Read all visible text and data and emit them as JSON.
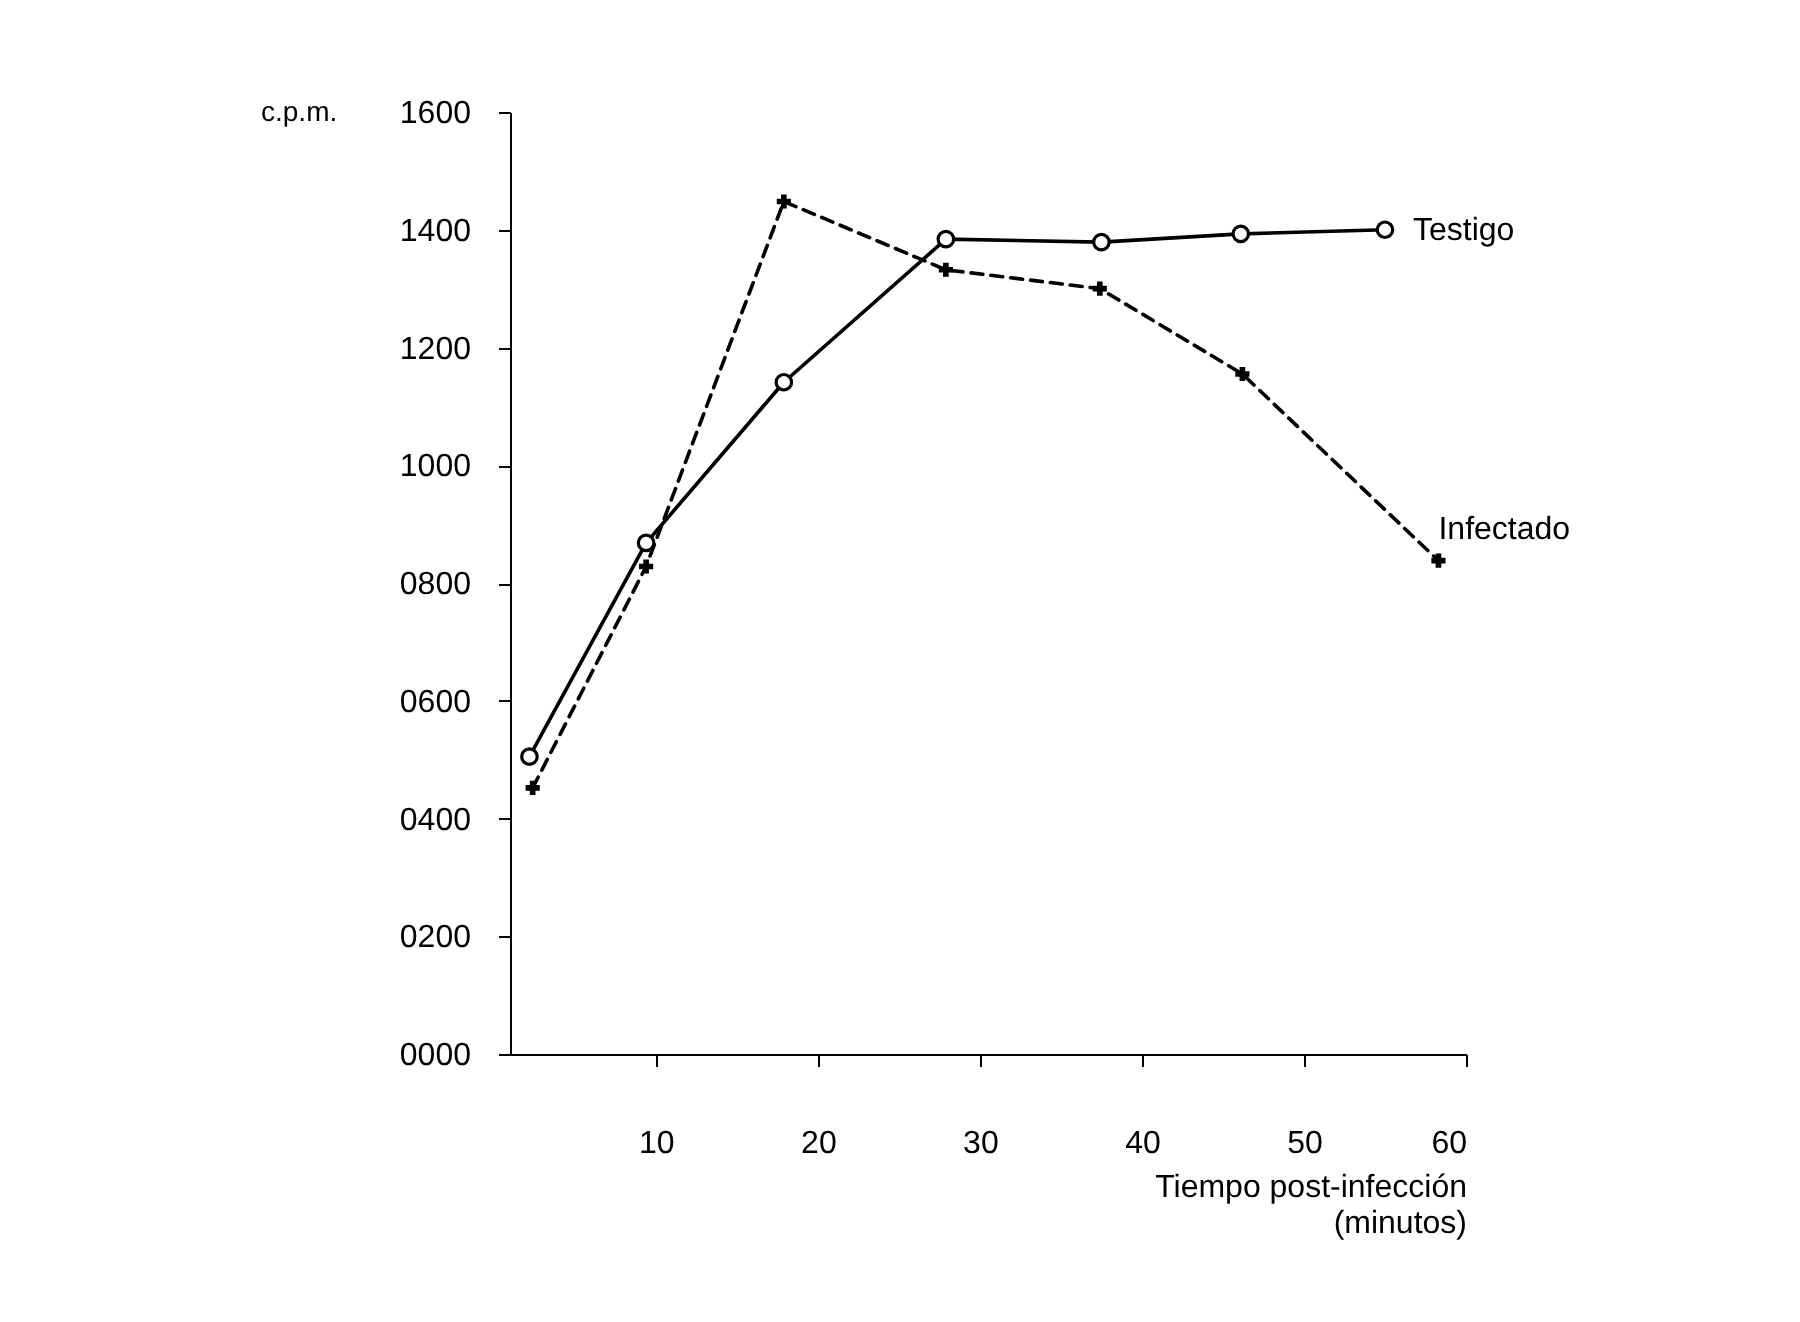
{
  "chart_data": {
    "type": "line",
    "xlabel": "Tiempo post-infección (minutos)",
    "ylabel": "c.p.m.",
    "xlim": [
      1,
      60
    ],
    "xticks": [
      10,
      20,
      30,
      40,
      50,
      60
    ],
    "ylim": [
      0,
      1600
    ],
    "yticks": [
      {
        "value": 0,
        "label": "0000"
      },
      {
        "value": 200,
        "label": "0200"
      },
      {
        "value": 400,
        "label": "0400"
      },
      {
        "value": 600,
        "label": "0600"
      },
      {
        "value": 800,
        "label": "0800"
      },
      {
        "value": 1000,
        "label": "1000"
      },
      {
        "value": 1200,
        "label": "1200"
      },
      {
        "value": 1400,
        "label": "1400"
      },
      {
        "value": 1600,
        "label": "1600"
      }
    ],
    "grid": false,
    "legend": false,
    "series": [
      {
        "name": "Testigo",
        "color": "#000000",
        "marker": "circle",
        "line_style": "solid",
        "x": [
          2.2,
          9.4,
          17.9,
          27.9,
          37.5,
          46.1,
          55.0
        ],
        "values": [
          505,
          868,
          1141,
          1384,
          1379,
          1393,
          1400
        ]
      },
      {
        "name": "Infectado",
        "color": "#000000",
        "marker": "cross",
        "line_style": "dashed",
        "x": [
          2.4,
          9.4,
          17.9,
          27.9,
          37.4,
          46.2,
          58.3
        ],
        "values": [
          452,
          828,
          1448,
          1332,
          1300,
          1155,
          838
        ]
      }
    ]
  }
}
